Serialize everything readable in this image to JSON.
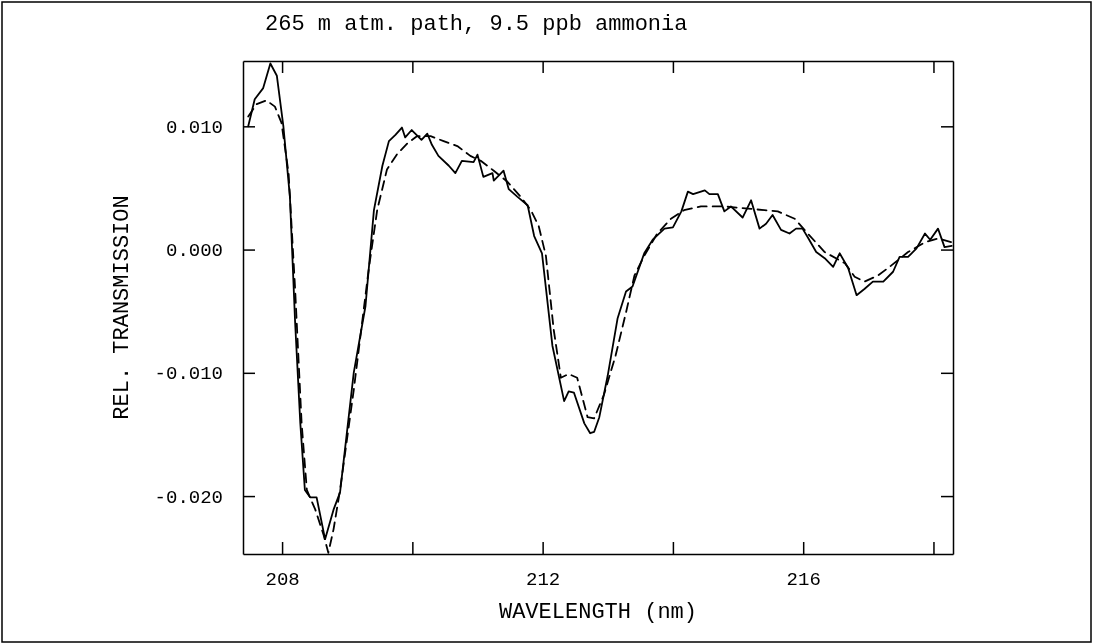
{
  "chart_data": {
    "type": "line",
    "title": "265 m atm. path, 9.5 ppb ammonia",
    "xlabel": "WAVELENGTH (nm)",
    "ylabel": "REL. TRANSMISSION",
    "xlim": [
      207.4,
      218.3
    ],
    "ylim": [
      -0.0247,
      0.0153
    ],
    "xticks": [
      208,
      {
        "value": 210,
        "label": null
      },
      212,
      {
        "value": 214,
        "label": null
      },
      216,
      {
        "value": 218,
        "label": null
      }
    ],
    "yticks": [
      {
        "value": 0.01,
        "label": "0.010"
      },
      {
        "value": 0,
        "label": "0.000"
      },
      {
        "value": -0.01,
        "label": "-0.010"
      },
      {
        "value": -0.02,
        "label": "-0.020"
      }
    ],
    "series": [
      {
        "color": "#000000",
        "line_style": "solid",
        "x": [
          207.48,
          207.58,
          207.71,
          207.82,
          207.92,
          208.02,
          208.12,
          208.2,
          208.28,
          208.35,
          208.43,
          208.53,
          208.66,
          208.79,
          208.89,
          209.1,
          209.28,
          209.41,
          209.54,
          209.64,
          209.74,
          209.84,
          209.89,
          209.99,
          210.14,
          210.23,
          210.3,
          210.4,
          210.56,
          210.66,
          210.76,
          210.94,
          211.0,
          211.09,
          211.23,
          211.25,
          211.4,
          211.48,
          211.61,
          211.77,
          211.87,
          211.99,
          212.15,
          212.33,
          212.4,
          212.48,
          212.64,
          212.73,
          212.79,
          212.87,
          213.0,
          213.15,
          213.28,
          213.38,
          213.56,
          213.69,
          213.87,
          214.0,
          214.13,
          214.23,
          214.31,
          214.49,
          214.56,
          214.69,
          214.79,
          214.89,
          215.07,
          215.2,
          215.33,
          215.43,
          215.53,
          215.66,
          215.79,
          215.89,
          215.99,
          216.07,
          216.2,
          216.33,
          216.46,
          216.56,
          216.69,
          216.82,
          216.94,
          217.07,
          217.23,
          217.38,
          217.48,
          217.61,
          217.74,
          217.87,
          217.95,
          218.07,
          218.17,
          218.28
        ],
        "values": [
          0.01,
          0.0122,
          0.0131,
          0.0151,
          0.0141,
          0.01,
          0.0043,
          -0.0059,
          -0.0141,
          -0.0195,
          -0.0201,
          -0.0201,
          -0.0235,
          -0.0211,
          -0.0197,
          -0.01,
          -0.0046,
          0.0032,
          0.0068,
          0.0088,
          0.0093,
          0.0099,
          0.0091,
          0.0097,
          0.0089,
          0.0094,
          0.0085,
          0.0076,
          0.0068,
          0.0062,
          0.0072,
          0.0071,
          0.0077,
          0.0059,
          0.0062,
          0.0056,
          0.0064,
          0.0049,
          0.0043,
          0.0036,
          0.0011,
          -0.0003,
          -0.0078,
          -0.0123,
          -0.0115,
          -0.0116,
          -0.0141,
          -0.0149,
          -0.0148,
          -0.0136,
          -0.0102,
          -0.0056,
          -0.0034,
          -0.003,
          -0.0003,
          0.0008,
          0.0017,
          0.0018,
          0.0031,
          0.0047,
          0.0045,
          0.0048,
          0.0045,
          0.0045,
          0.0031,
          0.0035,
          0.0026,
          0.004,
          0.0017,
          0.0021,
          0.0028,
          0.0016,
          0.0013,
          0.0017,
          0.0017,
          0.001,
          -0.0002,
          -0.0007,
          -0.0014,
          -0.0003,
          -0.0015,
          -0.0037,
          -0.0032,
          -0.0026,
          -0.0026,
          -0.0018,
          -0.0006,
          -0.0006,
          0.0001,
          0.0013,
          0.0008,
          0.0017,
          0.0002,
          0.0003
        ]
      },
      {
        "color": "#000000",
        "line_style": "dashed",
        "x": [
          207.48,
          207.61,
          207.76,
          207.89,
          207.99,
          208.1,
          208.2,
          208.3,
          208.38,
          208.51,
          208.64,
          208.71,
          208.79,
          208.89,
          209.1,
          209.33,
          209.46,
          209.61,
          209.76,
          209.92,
          210.07,
          210.28,
          210.48,
          210.69,
          210.89,
          211.05,
          211.25,
          211.46,
          211.66,
          211.82,
          211.94,
          212.05,
          212.17,
          212.28,
          212.4,
          212.53,
          212.69,
          212.79,
          212.94,
          213.12,
          213.28,
          213.41,
          213.56,
          213.76,
          213.97,
          214.17,
          214.43,
          214.79,
          215.2,
          215.61,
          215.87,
          216.07,
          216.33,
          216.64,
          216.79,
          216.94,
          217.15,
          217.35,
          217.61,
          217.87,
          218.07,
          218.28
        ],
        "values": [
          0.0108,
          0.0118,
          0.0121,
          0.0116,
          0.0103,
          0.0062,
          -0.0032,
          -0.0141,
          -0.0195,
          -0.0211,
          -0.0232,
          -0.0246,
          -0.0227,
          -0.0195,
          -0.0114,
          -0.0016,
          0.0032,
          0.0065,
          0.0077,
          0.0086,
          0.0092,
          0.0092,
          0.0088,
          0.0084,
          0.0076,
          0.0072,
          0.0064,
          0.0055,
          0.0043,
          0.0032,
          0.0019,
          -0.0005,
          -0.0065,
          -0.0104,
          -0.0101,
          -0.0104,
          -0.0136,
          -0.0137,
          -0.0118,
          -0.0086,
          -0.0051,
          -0.0021,
          -0.0005,
          0.0013,
          0.0025,
          0.0032,
          0.0035,
          0.0035,
          0.0033,
          0.0031,
          0.0025,
          0.0013,
          -0.0002,
          -0.0011,
          -0.0022,
          -0.0026,
          -0.0021,
          -0.0013,
          -0.0002,
          0.0006,
          0.0009,
          0.0006
        ]
      }
    ]
  }
}
